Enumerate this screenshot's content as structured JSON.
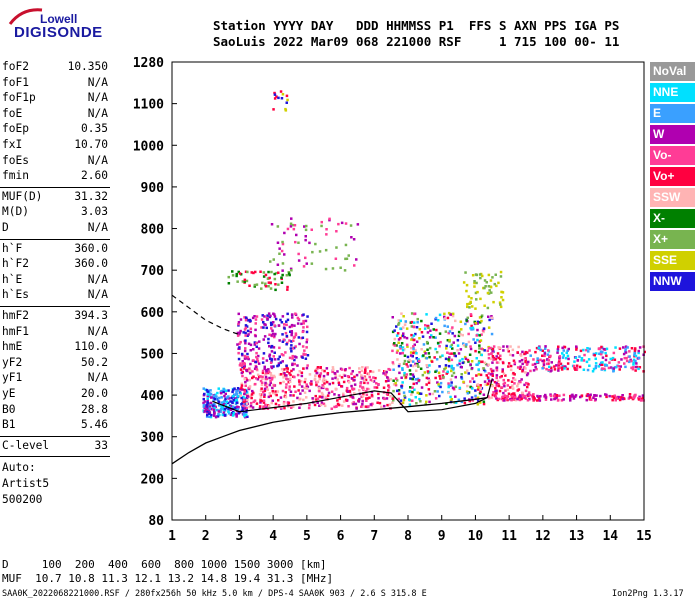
{
  "logo": {
    "line1": "Lowell",
    "line2": "DIGISONDE"
  },
  "header": {
    "line1": "Station YYYY DAY   DDD HHMMSS P1  FFS S AXN PPS IGA PS",
    "line2": "SaoLuis 2022 Mar09 068 221000 RSF     1 715 100 00- 11"
  },
  "params": [
    {
      "k": "foF2",
      "v": "10.350"
    },
    {
      "k": "foF1",
      "v": "N/A"
    },
    {
      "k": "foF1p",
      "v": "N/A"
    },
    {
      "k": "foE",
      "v": "N/A"
    },
    {
      "k": "foEp",
      "v": "0.35"
    },
    {
      "k": "fxI",
      "v": "10.70"
    },
    {
      "k": "foEs",
      "v": "N/A"
    },
    {
      "k": "fmin",
      "v": "2.60"
    },
    {
      "k": "MUF(D)",
      "v": "31.32"
    },
    {
      "k": "M(D)",
      "v": "3.03"
    },
    {
      "k": "D",
      "v": "N/A"
    },
    {
      "k": "h`F",
      "v": "360.0"
    },
    {
      "k": "h`F2",
      "v": "360.0"
    },
    {
      "k": "h`E",
      "v": "N/A"
    },
    {
      "k": "h`Es",
      "v": "N/A"
    },
    {
      "k": "hmF2",
      "v": "394.3"
    },
    {
      "k": "hmF1",
      "v": "N/A"
    },
    {
      "k": "hmE",
      "v": "110.0"
    },
    {
      "k": "yF2",
      "v": "50.2"
    },
    {
      "k": "yF1",
      "v": "N/A"
    },
    {
      "k": "yE",
      "v": "20.0"
    },
    {
      "k": "B0",
      "v": "28.8"
    },
    {
      "k": "B1",
      "v": "5.46"
    },
    {
      "k": "C-level",
      "v": "33"
    }
  ],
  "auto": {
    "l1": "Auto:",
    "l2": "Artist5",
    "l3": "500200"
  },
  "legend": [
    {
      "label": "NoVal",
      "color": "#999999"
    },
    {
      "label": "NNE",
      "color": "#00e0ff"
    },
    {
      "label": "E",
      "color": "#3aa0ff"
    },
    {
      "label": "W",
      "color": "#b000b0"
    },
    {
      "label": "Vo-",
      "color": "#ff3c96"
    },
    {
      "label": "Vo+",
      "color": "#ff0040"
    },
    {
      "label": "SSW",
      "color": "#ffb4b4"
    },
    {
      "label": "X-",
      "color": "#008000"
    },
    {
      "label": "X+",
      "color": "#78b450"
    },
    {
      "label": "SSE",
      "color": "#d0d000"
    },
    {
      "label": "NNW",
      "color": "#1e14dc"
    }
  ],
  "chart_data": {
    "type": "scatter",
    "x_ticks": [
      "1",
      "2",
      "3",
      "4",
      "5",
      "6",
      "7",
      "8",
      "9",
      "10",
      "11",
      "12",
      "13",
      "14",
      "15"
    ],
    "y_ticks": [
      "80",
      "200",
      "300",
      "400",
      "500",
      "600",
      "700",
      "800",
      "900",
      "1000",
      "1100",
      "1280"
    ],
    "xlim": [
      1,
      15
    ],
    "ylim": [
      80,
      1280
    ],
    "grid": false,
    "profile_line": {
      "x": [
        1,
        1.5,
        2,
        2.5,
        3,
        4,
        5,
        6,
        7,
        8,
        9,
        10,
        10.35
      ],
      "y": [
        235,
        262,
        285,
        300,
        315,
        335,
        348,
        358,
        365,
        372,
        380,
        390,
        394
      ]
    },
    "trace_line": {
      "x": [
        2.2,
        3,
        4,
        5,
        6,
        7,
        7.5,
        8,
        9,
        10,
        10.35,
        10.5
      ],
      "y": [
        385,
        360,
        370,
        380,
        395,
        410,
        405,
        360,
        365,
        380,
        394,
        440
      ]
    },
    "dashed_line": {
      "x": [
        1,
        1.5,
        2,
        2.5,
        3
      ],
      "y": [
        640,
        610,
        580,
        560,
        545
      ]
    }
  },
  "footer": {
    "d_row": "D     100  200  400  600  800 1000 1500 3000 [km]",
    "muf_row": "MUF  10.7 10.8 11.3 12.1 13.2 14.8 19.4 31.3 [MHz]",
    "file_row": "SAA0K_2022068221000.RSF / 280fx256h 50 kHz 5.0 km / DPS-4 SAA0K 903 / 2.6 S 315.8 E",
    "version": "Ion2Png 1.3.17"
  }
}
